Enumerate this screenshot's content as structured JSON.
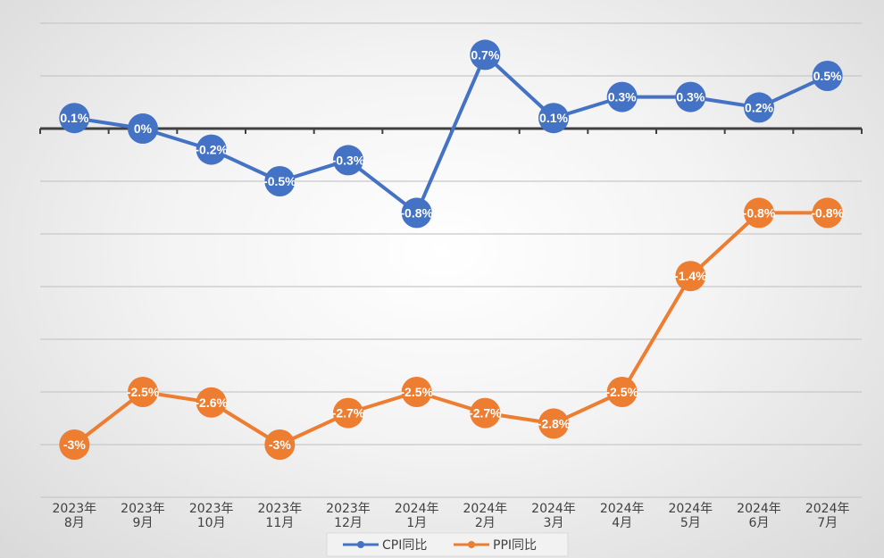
{
  "chart_data": {
    "type": "line",
    "categories": [
      "2023年8月",
      "2023年9月",
      "2023年10月",
      "2023年11月",
      "2023年12月",
      "2024年1月",
      "2024年2月",
      "2024年3月",
      "2024年4月",
      "2024年5月",
      "2024年6月",
      "2024年7月"
    ],
    "series": [
      {
        "name": "CPI同比",
        "color": "#4472C4",
        "values": [
          0.1,
          0,
          -0.2,
          -0.5,
          -0.3,
          -0.8,
          0.7,
          0.1,
          0.3,
          0.3,
          0.2,
          0.5
        ],
        "labels": [
          "0.1%",
          "0%",
          "-0.2%",
          "-0.5%",
          "-0.3%",
          "-0.8%",
          "0.7%",
          "0.1%",
          "0.3%",
          "0.3%",
          "0.2%",
          "0.5%"
        ]
      },
      {
        "name": "PPI同比",
        "color": "#ED7D31",
        "values": [
          -3,
          -2.5,
          -2.6,
          -3,
          -2.7,
          -2.5,
          -2.7,
          -2.8,
          -2.5,
          -1.4,
          -0.8,
          -0.8
        ],
        "labels": [
          "-3%",
          "-2.5%",
          "-2.6%",
          "-3%",
          "-2.7%",
          "-2.5%",
          "-2.7%",
          "-2.8%",
          "-2.5%",
          "-1.4%",
          "-0.8%",
          "-0.8%"
        ]
      }
    ],
    "ylim": [
      -3.5,
      1.0
    ],
    "grid": true,
    "legend": "bottom"
  }
}
